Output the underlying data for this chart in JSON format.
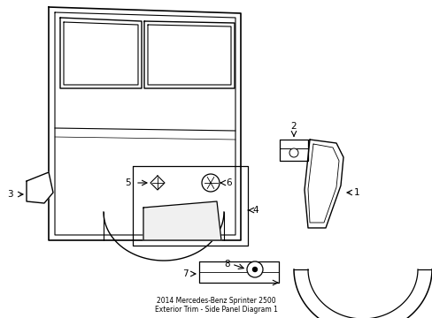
{
  "bg_color": "#ffffff",
  "line_color": "#000000",
  "figsize": [
    4.89,
    3.6
  ],
  "dpi": 100,
  "title": "2014 Mercedes-Benz Sprinter 2500\nExterior Trim - Side Panel Diagram 1"
}
